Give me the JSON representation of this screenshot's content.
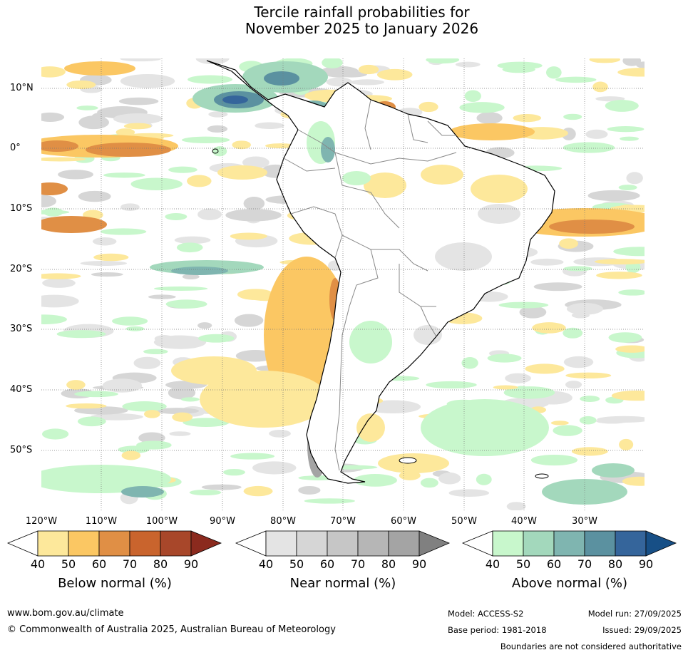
{
  "title": {
    "line1": "Tercile rainfall probabilities for",
    "line2": "November 2025 to January 2026"
  },
  "map": {
    "lat_labels": [
      "10°N",
      "0°",
      "10°S",
      "20°S",
      "30°S",
      "40°S",
      "50°S"
    ],
    "lon_labels": [
      "120°W",
      "110°W",
      "100°W",
      "90°W",
      "80°W",
      "70°W",
      "60°W",
      "50°W",
      "40°W",
      "30°W"
    ],
    "land_color": "#ffffff",
    "coast_color": "#000000",
    "border_color": "#888888"
  },
  "legends": [
    {
      "name": "below",
      "title": "Below normal (%)",
      "ticks": [
        "40",
        "50",
        "60",
        "70",
        "80",
        "90"
      ],
      "colors": [
        "#ffffff",
        "#fde89b",
        "#fbc763",
        "#e08f45",
        "#c9642d",
        "#a8472a",
        "#8b2a1e"
      ]
    },
    {
      "name": "near",
      "title": "Near normal (%)",
      "ticks": [
        "40",
        "50",
        "60",
        "70",
        "80",
        "90"
      ],
      "colors": [
        "#ffffff",
        "#e4e4e4",
        "#d6d6d6",
        "#c6c6c6",
        "#b6b6b6",
        "#a4a4a4",
        "#808080"
      ]
    },
    {
      "name": "above",
      "title": "Above normal (%)",
      "ticks": [
        "40",
        "50",
        "60",
        "70",
        "80",
        "90"
      ],
      "colors": [
        "#ffffff",
        "#c8f7cc",
        "#a3d8bc",
        "#7fb5b0",
        "#5b91a0",
        "#35659b",
        "#174f86"
      ]
    }
  ],
  "footer": {
    "website": "www.bom.gov.au/climate",
    "copyright": "© Commonwealth of Australia 2025, Australian Bureau of Meteorology",
    "model": "Model: ACCESS-S2",
    "base_period": "Base period: 1981-2018",
    "model_run": "Model run: 27/09/2025",
    "issued": "Issued: 29/09/2025",
    "disclaimer": "Boundaries are not considered authoritative"
  }
}
